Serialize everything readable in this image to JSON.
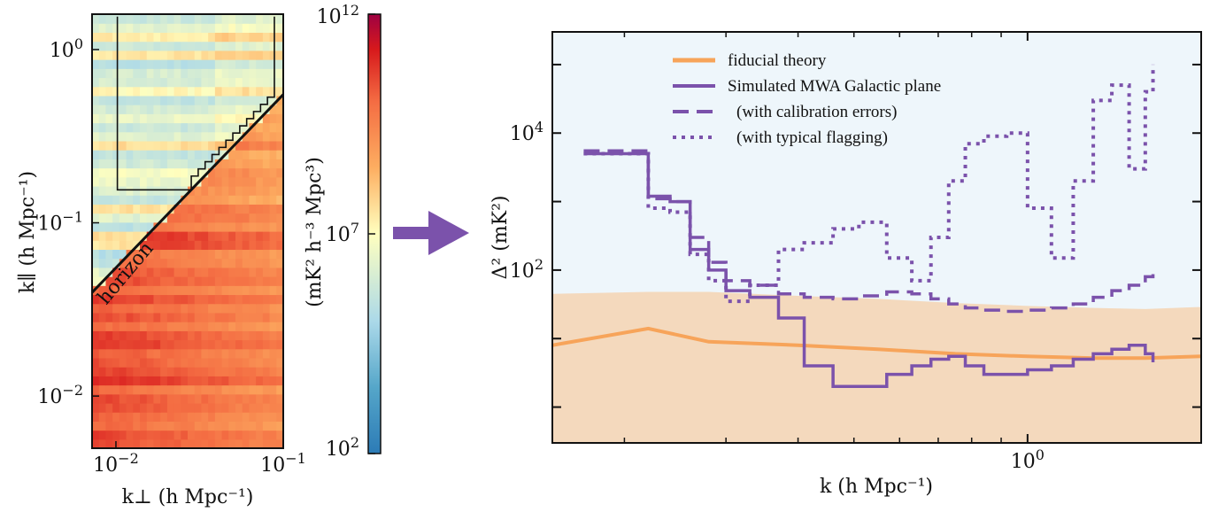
{
  "chart_data": [
    {
      "type": "heatmap",
      "xlabel": "k⊥ (h Mpc⁻¹)",
      "ylabel": "k∥ (h Mpc⁻¹)",
      "x_ticks": [
        {
          "base": "10",
          "exp": "−2",
          "value": 0.01
        },
        {
          "base": "10",
          "exp": "−1",
          "value": 0.1
        }
      ],
      "y_ticks": [
        {
          "base": "10",
          "exp": "−2",
          "value": 0.01
        },
        {
          "base": "10",
          "exp": "−1",
          "value": 0.1
        },
        {
          "base": "10",
          "exp": "0",
          "value": 1
        }
      ],
      "xlim": [
        0.0072,
        0.1
      ],
      "ylim": [
        0.005,
        1.6
      ],
      "xscale": "log",
      "yscale": "log",
      "annotation": "horizon",
      "colorbar": {
        "label": "(mK² h⁻³ Mpc³)",
        "scale": "log",
        "range": [
          100,
          1000000000000.0
        ],
        "ticks": [
          {
            "base": "10",
            "exp": "12",
            "value": 1000000000000.0
          },
          {
            "base": "10",
            "exp": "7",
            "value": 10000000.0
          },
          {
            "base": "10",
            "exp": "2",
            "value": 100
          }
        ],
        "colors": [
          "#2c7bb6",
          "#abd9e9",
          "#ffffbf",
          "#fdae61",
          "#d7191c",
          "#9e0142"
        ]
      }
    },
    {
      "type": "line",
      "xlabel": "k (h Mpc⁻¹)",
      "ylabel": "Δ² (mK²)",
      "xscale": "log",
      "yscale": "log",
      "xlim": [
        0.15,
        2.0
      ],
      "ylim": [
        0.3,
        300000
      ],
      "x_ticks": [
        {
          "base": "10",
          "exp": "0",
          "value": 1
        }
      ],
      "y_ticks": [
        {
          "base": "10",
          "exp": "2",
          "value": 100
        },
        {
          "base": "10",
          "exp": "4",
          "value": 10000
        }
      ],
      "legend_position": "top-left",
      "background_color": "#eef6fb",
      "series": [
        {
          "name": "fiducial theory",
          "color": "#f7a45a",
          "style": "solid",
          "x": [
            0.15,
            0.22,
            0.28,
            0.4,
            0.55,
            0.75,
            1.0,
            1.3,
            1.6,
            2.0
          ],
          "y": [
            8,
            14,
            9,
            8,
            7,
            6,
            5.5,
            5.2,
            5.2,
            5.5
          ],
          "band_upper": [
            45,
            48,
            48,
            42,
            38,
            33,
            30,
            28,
            27,
            29
          ],
          "band_lower": [
            0.3,
            0.3,
            0.3,
            0.3,
            0.3,
            0.3,
            0.3,
            0.3,
            0.3,
            0.3
          ]
        },
        {
          "name": "Simulated MWA Galactic plane",
          "color": "#7b52ab",
          "style": "solid",
          "x": [
            0.17,
            0.2,
            0.22,
            0.24,
            0.26,
            0.28,
            0.3,
            0.33,
            0.37,
            0.41,
            0.46,
            0.51,
            0.57,
            0.63,
            0.68,
            0.73,
            0.78,
            0.84,
            0.92,
            1.0,
            1.1,
            1.2,
            1.3,
            1.4,
            1.5,
            1.6,
            1.65
          ],
          "y": [
            5000,
            5000,
            1200,
            1000,
            200,
            100,
            50,
            40,
            20,
            4,
            2,
            2,
            3,
            4,
            5,
            5.5,
            4,
            3,
            3,
            3.5,
            4,
            5,
            6,
            7,
            8,
            6,
            4.5
          ]
        },
        {
          "name": "(with calibration errors)",
          "color": "#7b52ab",
          "style": "dashed",
          "x": [
            0.17,
            0.2,
            0.22,
            0.24,
            0.26,
            0.28,
            0.3,
            0.33,
            0.37,
            0.41,
            0.46,
            0.51,
            0.57,
            0.63,
            0.68,
            0.73,
            0.78,
            0.84,
            0.92,
            1.0,
            1.1,
            1.2,
            1.3,
            1.4,
            1.5,
            1.6,
            1.65
          ],
          "y": [
            5500,
            5500,
            1100,
            1000,
            300,
            130,
            70,
            60,
            45,
            40,
            38,
            42,
            48,
            45,
            38,
            32,
            28,
            26,
            25,
            26,
            28,
            32,
            40,
            50,
            60,
            80,
            95
          ]
        },
        {
          "name": "(with typical flagging)",
          "color": "#7b52ab",
          "style": "dotted",
          "x": [
            0.17,
            0.2,
            0.22,
            0.24,
            0.26,
            0.28,
            0.3,
            0.33,
            0.37,
            0.41,
            0.46,
            0.51,
            0.57,
            0.63,
            0.68,
            0.73,
            0.78,
            0.84,
            0.92,
            1.0,
            1.1,
            1.2,
            1.3,
            1.4,
            1.5,
            1.6,
            1.65
          ],
          "y": [
            5000,
            5000,
            800,
            700,
            170,
            70,
            35,
            60,
            200,
            250,
            400,
            500,
            150,
            70,
            300,
            2000,
            7000,
            9000,
            10000,
            800,
            150,
            2000,
            30000,
            50000,
            3000,
            40000,
            100000
          ]
        }
      ]
    }
  ],
  "arrow_color": "#7b52ab"
}
